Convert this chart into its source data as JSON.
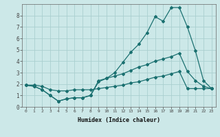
{
  "xlabel": "Humidex (Indice chaleur)",
  "bg_color": "#cce8e8",
  "grid_color": "#aacfcf",
  "line_color": "#1a7070",
  "xlim": [
    -0.5,
    23.5
  ],
  "ylim": [
    0,
    9
  ],
  "xticks": [
    0,
    1,
    2,
    3,
    4,
    5,
    6,
    7,
    8,
    9,
    10,
    11,
    12,
    13,
    14,
    15,
    16,
    17,
    18,
    19,
    20,
    21,
    22,
    23
  ],
  "yticks": [
    0,
    1,
    2,
    3,
    4,
    5,
    6,
    7,
    8
  ],
  "line1_x": [
    0,
    1,
    2,
    3,
    4,
    5,
    6,
    7,
    8,
    9,
    10,
    11,
    12,
    13,
    14,
    15,
    16,
    17,
    18,
    19,
    20,
    21,
    22,
    23
  ],
  "line1_y": [
    1.9,
    1.8,
    1.5,
    1.0,
    0.5,
    0.7,
    0.8,
    0.8,
    1.0,
    2.2,
    2.5,
    3.0,
    3.9,
    4.8,
    5.5,
    6.5,
    7.9,
    7.5,
    8.7,
    8.7,
    7.0,
    4.9,
    2.3,
    1.6
  ],
  "line2_x": [
    0,
    1,
    2,
    3,
    4,
    5,
    6,
    7,
    8,
    9,
    10,
    11,
    12,
    13,
    14,
    15,
    16,
    17,
    18,
    19,
    20,
    21,
    22,
    23
  ],
  "line2_y": [
    1.9,
    1.8,
    1.5,
    1.0,
    0.5,
    0.7,
    0.8,
    0.8,
    1.0,
    2.3,
    2.5,
    2.7,
    2.9,
    3.2,
    3.5,
    3.7,
    4.0,
    4.2,
    4.4,
    4.7,
    3.1,
    2.3,
    1.8,
    1.6
  ],
  "line3_x": [
    0,
    1,
    2,
    3,
    4,
    5,
    6,
    7,
    8,
    9,
    10,
    11,
    12,
    13,
    14,
    15,
    16,
    17,
    18,
    19,
    20,
    21,
    22,
    23
  ],
  "line3_y": [
    1.9,
    1.9,
    1.8,
    1.5,
    1.4,
    1.4,
    1.5,
    1.5,
    1.5,
    1.6,
    1.7,
    1.8,
    1.9,
    2.1,
    2.2,
    2.4,
    2.6,
    2.7,
    2.9,
    3.1,
    1.6,
    1.6,
    1.6,
    1.6
  ]
}
